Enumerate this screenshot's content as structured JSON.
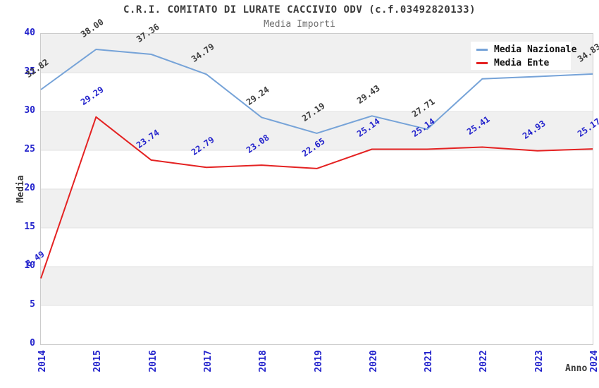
{
  "colors": {
    "band": "#f0f0f0",
    "grid_line": "#e2e2e2",
    "plot_border": "#cccccc",
    "axis_tick_text": "#2323cc",
    "title_text": "#3a3a3a",
    "subtitle_text": "#6e6e6e",
    "national_line": "#76a3d8",
    "ente_line": "#e42222",
    "national_label_text": "#3c3c3c",
    "ente_label_text": "#2323cc"
  },
  "legend": {
    "entries": [
      {
        "label": "Media Nazionale",
        "swatch_color": "#76a3d8"
      },
      {
        "label": "Media Ente",
        "swatch_color": "#e42222"
      }
    ]
  },
  "chart_data": {
    "type": "line",
    "title": "C.R.I. COMITATO DI LURATE CACCIVIO ODV (c.f.03492820133)",
    "subtitle": "Media Importi",
    "xlabel": "Anno",
    "ylabel": "Media",
    "ylim": [
      0,
      40
    ],
    "y_ticks": [
      0,
      5,
      10,
      15,
      20,
      25,
      30,
      35,
      40
    ],
    "categories": [
      "2014",
      "2015",
      "2016",
      "2017",
      "2018",
      "2019",
      "2020",
      "2021",
      "2022",
      "2023",
      "2024"
    ],
    "grid": "alternating-horizontal-bands",
    "legend_position": "top-right",
    "series": [
      {
        "name": "Media Nazionale",
        "color": "#76a3d8",
        "label_color": "#3c3c3c",
        "values": [
          32.82,
          38.0,
          37.36,
          34.79,
          29.24,
          27.19,
          29.43,
          27.71,
          34.2,
          34.5,
          34.83
        ],
        "point_labels": [
          "32.82",
          "38.00",
          "37.36",
          "34.79",
          "29.24",
          "27.19",
          "29.43",
          "27.71",
          "",
          "",
          "34.83"
        ]
      },
      {
        "name": "Media Ente",
        "color": "#e42222",
        "label_color": "#2323cc",
        "values": [
          8.49,
          29.29,
          23.74,
          22.79,
          23.08,
          22.65,
          25.14,
          25.14,
          25.41,
          24.93,
          25.17
        ],
        "point_labels": [
          "8.49",
          "29.29",
          "23.74",
          "22.79",
          "23.08",
          "22.65",
          "25.14",
          "25.14",
          "25.41",
          "24.93",
          "25.17"
        ]
      }
    ]
  }
}
